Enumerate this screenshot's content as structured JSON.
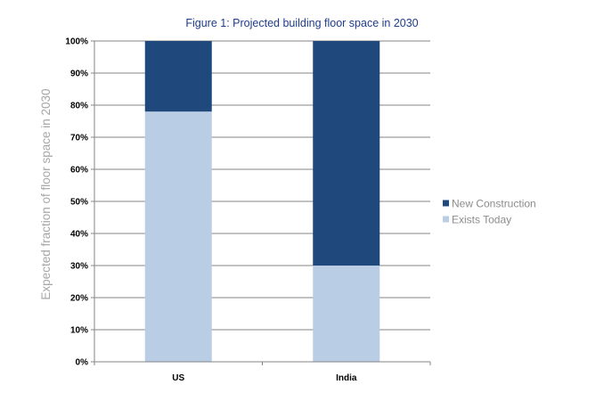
{
  "chart_data": {
    "type": "bar",
    "stacked": true,
    "title": "Figure 1: Projected building floor space in 2030",
    "xlabel": "",
    "ylabel": "Expected fraction of floor space in 2030",
    "categories": [
      "US",
      "India"
    ],
    "series": [
      {
        "name": "Exists Today",
        "values": [
          78,
          30
        ],
        "color": "#b9cde5"
      },
      {
        "name": "New Construction",
        "values": [
          22,
          70
        ],
        "color": "#1f497d"
      }
    ],
    "ylim": [
      0,
      100
    ],
    "yticks": [
      "0%",
      "10%",
      "20%",
      "30%",
      "40%",
      "50%",
      "60%",
      "70%",
      "80%",
      "90%",
      "100%"
    ],
    "grid": true,
    "legend_position": "right",
    "legend_order": [
      "New Construction",
      "Exists Today"
    ],
    "colors": {
      "title": "#1f3c8c",
      "grid": "#868686",
      "axis_label": "#a6a6a6",
      "legend_text": "#8c8c8c"
    }
  }
}
